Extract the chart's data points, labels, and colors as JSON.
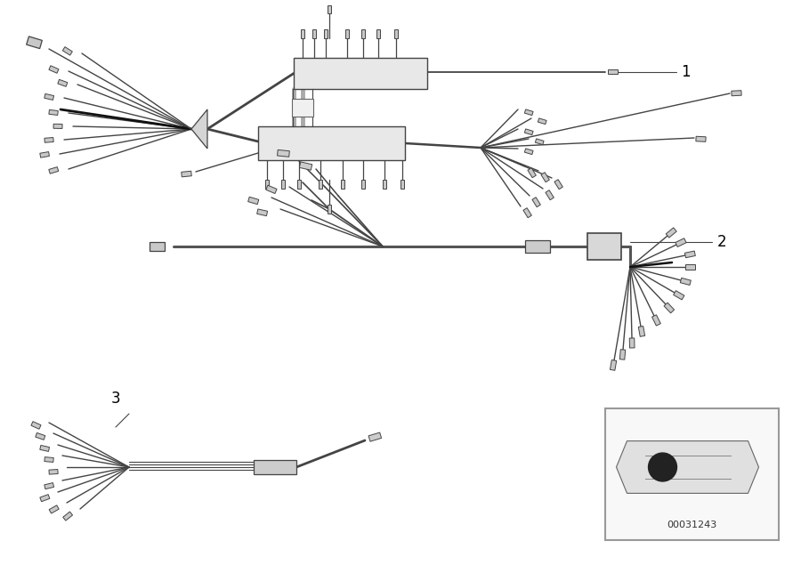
{
  "bg_color": "#ffffff",
  "line_color": "#444444",
  "lw_wire": 1.2,
  "lw_thick": 2.0,
  "lw_thin": 0.8,
  "connector_color": "#c0c0c0",
  "connector_edge": "#444444",
  "diagram_id": "00031243",
  "figsize": [
    9.0,
    6.35
  ],
  "dpi": 100
}
